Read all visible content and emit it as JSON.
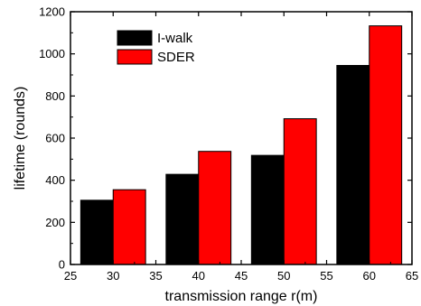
{
  "chart_data": {
    "type": "bar",
    "xlabel": "transmission range  r(m)",
    "ylabel": "lifetime   (rounds)",
    "xlim": [
      25,
      65
    ],
    "ylim": [
      0,
      1200
    ],
    "x_ticks": [
      25,
      30,
      35,
      40,
      45,
      50,
      55,
      60,
      65
    ],
    "y_ticks": [
      0,
      200,
      400,
      600,
      800,
      1000,
      1200
    ],
    "x": [
      30,
      40,
      50,
      60
    ],
    "series": [
      {
        "name": "I-walk",
        "values": [
          305,
          428,
          518,
          945
        ],
        "color": "#000000"
      },
      {
        "name": "SDER",
        "values": [
          355,
          537,
          692,
          1133
        ],
        "color": "#ff0000"
      }
    ],
    "grid": false,
    "legend_position": "top-left"
  }
}
